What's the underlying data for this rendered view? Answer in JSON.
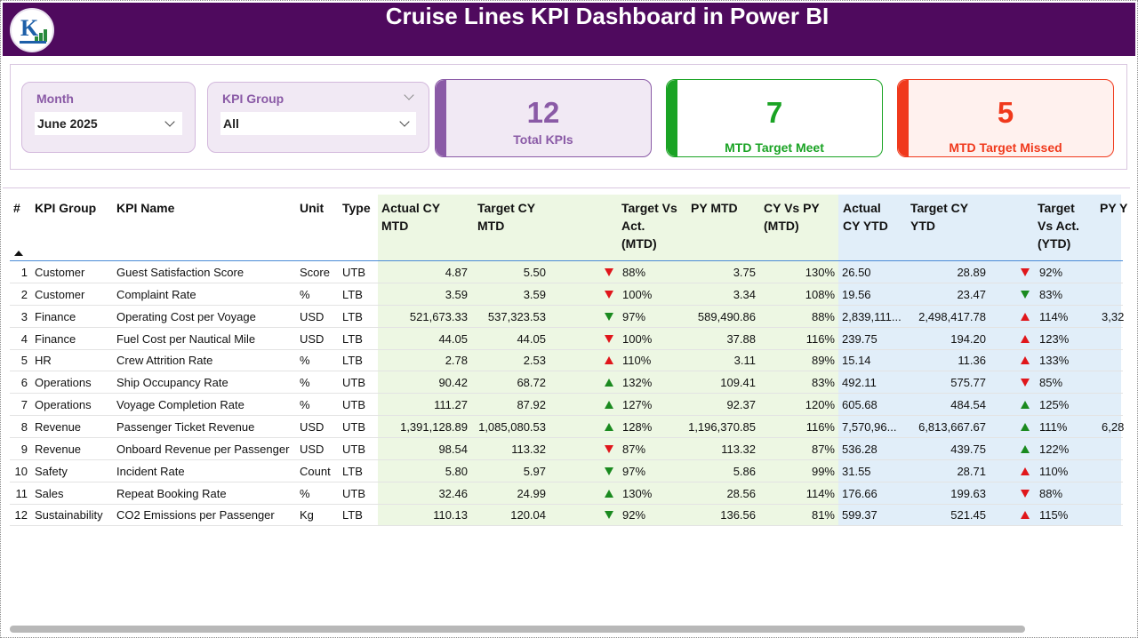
{
  "header": {
    "title": "Cruise Lines KPI Dashboard  in Power BI"
  },
  "filters": {
    "month": {
      "label": "Month",
      "value": "June 2025"
    },
    "kpi_group": {
      "label": "KPI Group",
      "value": "All"
    }
  },
  "cards": {
    "total": {
      "value": "12",
      "caption": "Total KPIs",
      "color": "#8a5aa6"
    },
    "met": {
      "value": "7",
      "caption": "MTD Target Meet",
      "color": "#1aa324"
    },
    "missed": {
      "value": "5",
      "caption": "MTD Target Missed",
      "color": "#f0391c"
    }
  },
  "colors": {
    "up": "#1a8a1f",
    "down_bad": "#e0161b",
    "mtd_bg": "#edf7e3",
    "ytd_bg": "#e1eef9"
  },
  "table": {
    "headers": {
      "num": "#",
      "group": "KPI Group",
      "name": "KPI Name",
      "unit": "Unit",
      "type": "Type",
      "act_mtd_1": "Actual CY",
      "act_mtd_2": "MTD",
      "tgt_mtd_1": "Target CY",
      "tgt_mtd_2": "MTD",
      "tva_mtd_1": "Target Vs",
      "tva_mtd_2": "Act.",
      "tva_mtd_3": "(MTD)",
      "py_mtd": "PY MTD",
      "cvp_mtd_1": "CY Vs PY",
      "cvp_mtd_2": "(MTD)",
      "act_ytd_1": "Actual",
      "act_ytd_2": "CY YTD",
      "tgt_ytd_1": "Target CY",
      "tgt_ytd_2": "YTD",
      "tva_ytd_1": "Target",
      "tva_ytd_2": "Vs Act.",
      "tva_ytd_3": "(YTD)",
      "py_ytd": "PY Y"
    },
    "rows": [
      {
        "num": "1",
        "group": "Customer",
        "name": "Guest Satisfaction Score",
        "unit": "Score",
        "type": "UTB",
        "act_mtd": "4.87",
        "tgt_mtd": "5.50",
        "mtd_icon": "down-red",
        "tva_mtd": "88%",
        "py_mtd": "3.75",
        "cvp_mtd": "130%",
        "act_ytd": "26.50",
        "tgt_ytd": "28.89",
        "ytd_icon": "down-red",
        "tva_ytd": "92%",
        "py_ytd": ""
      },
      {
        "num": "2",
        "group": "Customer",
        "name": "Complaint Rate",
        "unit": "%",
        "type": "LTB",
        "act_mtd": "3.59",
        "tgt_mtd": "3.59",
        "mtd_icon": "down-red",
        "tva_mtd": "100%",
        "py_mtd": "3.34",
        "cvp_mtd": "108%",
        "act_ytd": "19.56",
        "tgt_ytd": "23.47",
        "ytd_icon": "down-green",
        "tva_ytd": "83%",
        "py_ytd": ""
      },
      {
        "num": "3",
        "group": "Finance",
        "name": "Operating Cost per Voyage",
        "unit": "USD",
        "type": "LTB",
        "act_mtd": "521,673.33",
        "tgt_mtd": "537,323.53",
        "mtd_icon": "down-green",
        "tva_mtd": "97%",
        "py_mtd": "589,490.86",
        "cvp_mtd": "88%",
        "act_ytd": "2,839,111...",
        "tgt_ytd": "2,498,417.78",
        "ytd_icon": "up-red",
        "tva_ytd": "114%",
        "py_ytd": "3,32"
      },
      {
        "num": "4",
        "group": "Finance",
        "name": "Fuel Cost per Nautical Mile",
        "unit": "USD",
        "type": "LTB",
        "act_mtd": "44.05",
        "tgt_mtd": "44.05",
        "mtd_icon": "down-red",
        "tva_mtd": "100%",
        "py_mtd": "37.88",
        "cvp_mtd": "116%",
        "act_ytd": "239.75",
        "tgt_ytd": "194.20",
        "ytd_icon": "up-red",
        "tva_ytd": "123%",
        "py_ytd": ""
      },
      {
        "num": "5",
        "group": "HR",
        "name": "Crew Attrition Rate",
        "unit": "%",
        "type": "LTB",
        "act_mtd": "2.78",
        "tgt_mtd": "2.53",
        "mtd_icon": "up-red",
        "tva_mtd": "110%",
        "py_mtd": "3.11",
        "cvp_mtd": "89%",
        "act_ytd": "15.14",
        "tgt_ytd": "11.36",
        "ytd_icon": "up-red",
        "tva_ytd": "133%",
        "py_ytd": ""
      },
      {
        "num": "6",
        "group": "Operations",
        "name": "Ship Occupancy Rate",
        "unit": "%",
        "type": "UTB",
        "act_mtd": "90.42",
        "tgt_mtd": "68.72",
        "mtd_icon": "up-green",
        "tva_mtd": "132%",
        "py_mtd": "109.41",
        "cvp_mtd": "83%",
        "act_ytd": "492.11",
        "tgt_ytd": "575.77",
        "ytd_icon": "down-red",
        "tva_ytd": "85%",
        "py_ytd": ""
      },
      {
        "num": "7",
        "group": "Operations",
        "name": "Voyage Completion Rate",
        "unit": "%",
        "type": "UTB",
        "act_mtd": "111.27",
        "tgt_mtd": "87.92",
        "mtd_icon": "up-green",
        "tva_mtd": "127%",
        "py_mtd": "92.37",
        "cvp_mtd": "120%",
        "act_ytd": "605.68",
        "tgt_ytd": "484.54",
        "ytd_icon": "up-green",
        "tva_ytd": "125%",
        "py_ytd": ""
      },
      {
        "num": "8",
        "group": "Revenue",
        "name": "Passenger Ticket Revenue",
        "unit": "USD",
        "type": "UTB",
        "act_mtd": "1,391,128.89",
        "tgt_mtd": "1,085,080.53",
        "mtd_icon": "up-green",
        "tva_mtd": "128%",
        "py_mtd": "1,196,370.85",
        "cvp_mtd": "116%",
        "act_ytd": "7,570,96...",
        "tgt_ytd": "6,813,667.67",
        "ytd_icon": "up-green",
        "tva_ytd": "111%",
        "py_ytd": "6,28"
      },
      {
        "num": "9",
        "group": "Revenue",
        "name": "Onboard Revenue per Passenger",
        "unit": "USD",
        "type": "UTB",
        "act_mtd": "98.54",
        "tgt_mtd": "113.32",
        "mtd_icon": "down-red",
        "tva_mtd": "87%",
        "py_mtd": "113.32",
        "cvp_mtd": "87%",
        "act_ytd": "536.28",
        "tgt_ytd": "439.75",
        "ytd_icon": "up-green",
        "tva_ytd": "122%",
        "py_ytd": ""
      },
      {
        "num": "10",
        "group": "Safety",
        "name": "Incident Rate",
        "unit": "Count",
        "type": "LTB",
        "act_mtd": "5.80",
        "tgt_mtd": "5.97",
        "mtd_icon": "down-green",
        "tva_mtd": "97%",
        "py_mtd": "5.86",
        "cvp_mtd": "99%",
        "act_ytd": "31.55",
        "tgt_ytd": "28.71",
        "ytd_icon": "up-red",
        "tva_ytd": "110%",
        "py_ytd": ""
      },
      {
        "num": "11",
        "group": "Sales",
        "name": "Repeat Booking Rate",
        "unit": "%",
        "type": "UTB",
        "act_mtd": "32.46",
        "tgt_mtd": "24.99",
        "mtd_icon": "up-green",
        "tva_mtd": "130%",
        "py_mtd": "28.56",
        "cvp_mtd": "114%",
        "act_ytd": "176.66",
        "tgt_ytd": "199.63",
        "ytd_icon": "down-red",
        "tva_ytd": "88%",
        "py_ytd": ""
      },
      {
        "num": "12",
        "group": "Sustainability",
        "name": "CO2 Emissions per Passenger",
        "unit": "Kg",
        "type": "LTB",
        "act_mtd": "110.13",
        "tgt_mtd": "120.04",
        "mtd_icon": "down-green",
        "tva_mtd": "92%",
        "py_mtd": "136.56",
        "cvp_mtd": "81%",
        "act_ytd": "599.37",
        "tgt_ytd": "521.45",
        "ytd_icon": "up-red",
        "tva_ytd": "115%",
        "py_ytd": ""
      }
    ]
  }
}
